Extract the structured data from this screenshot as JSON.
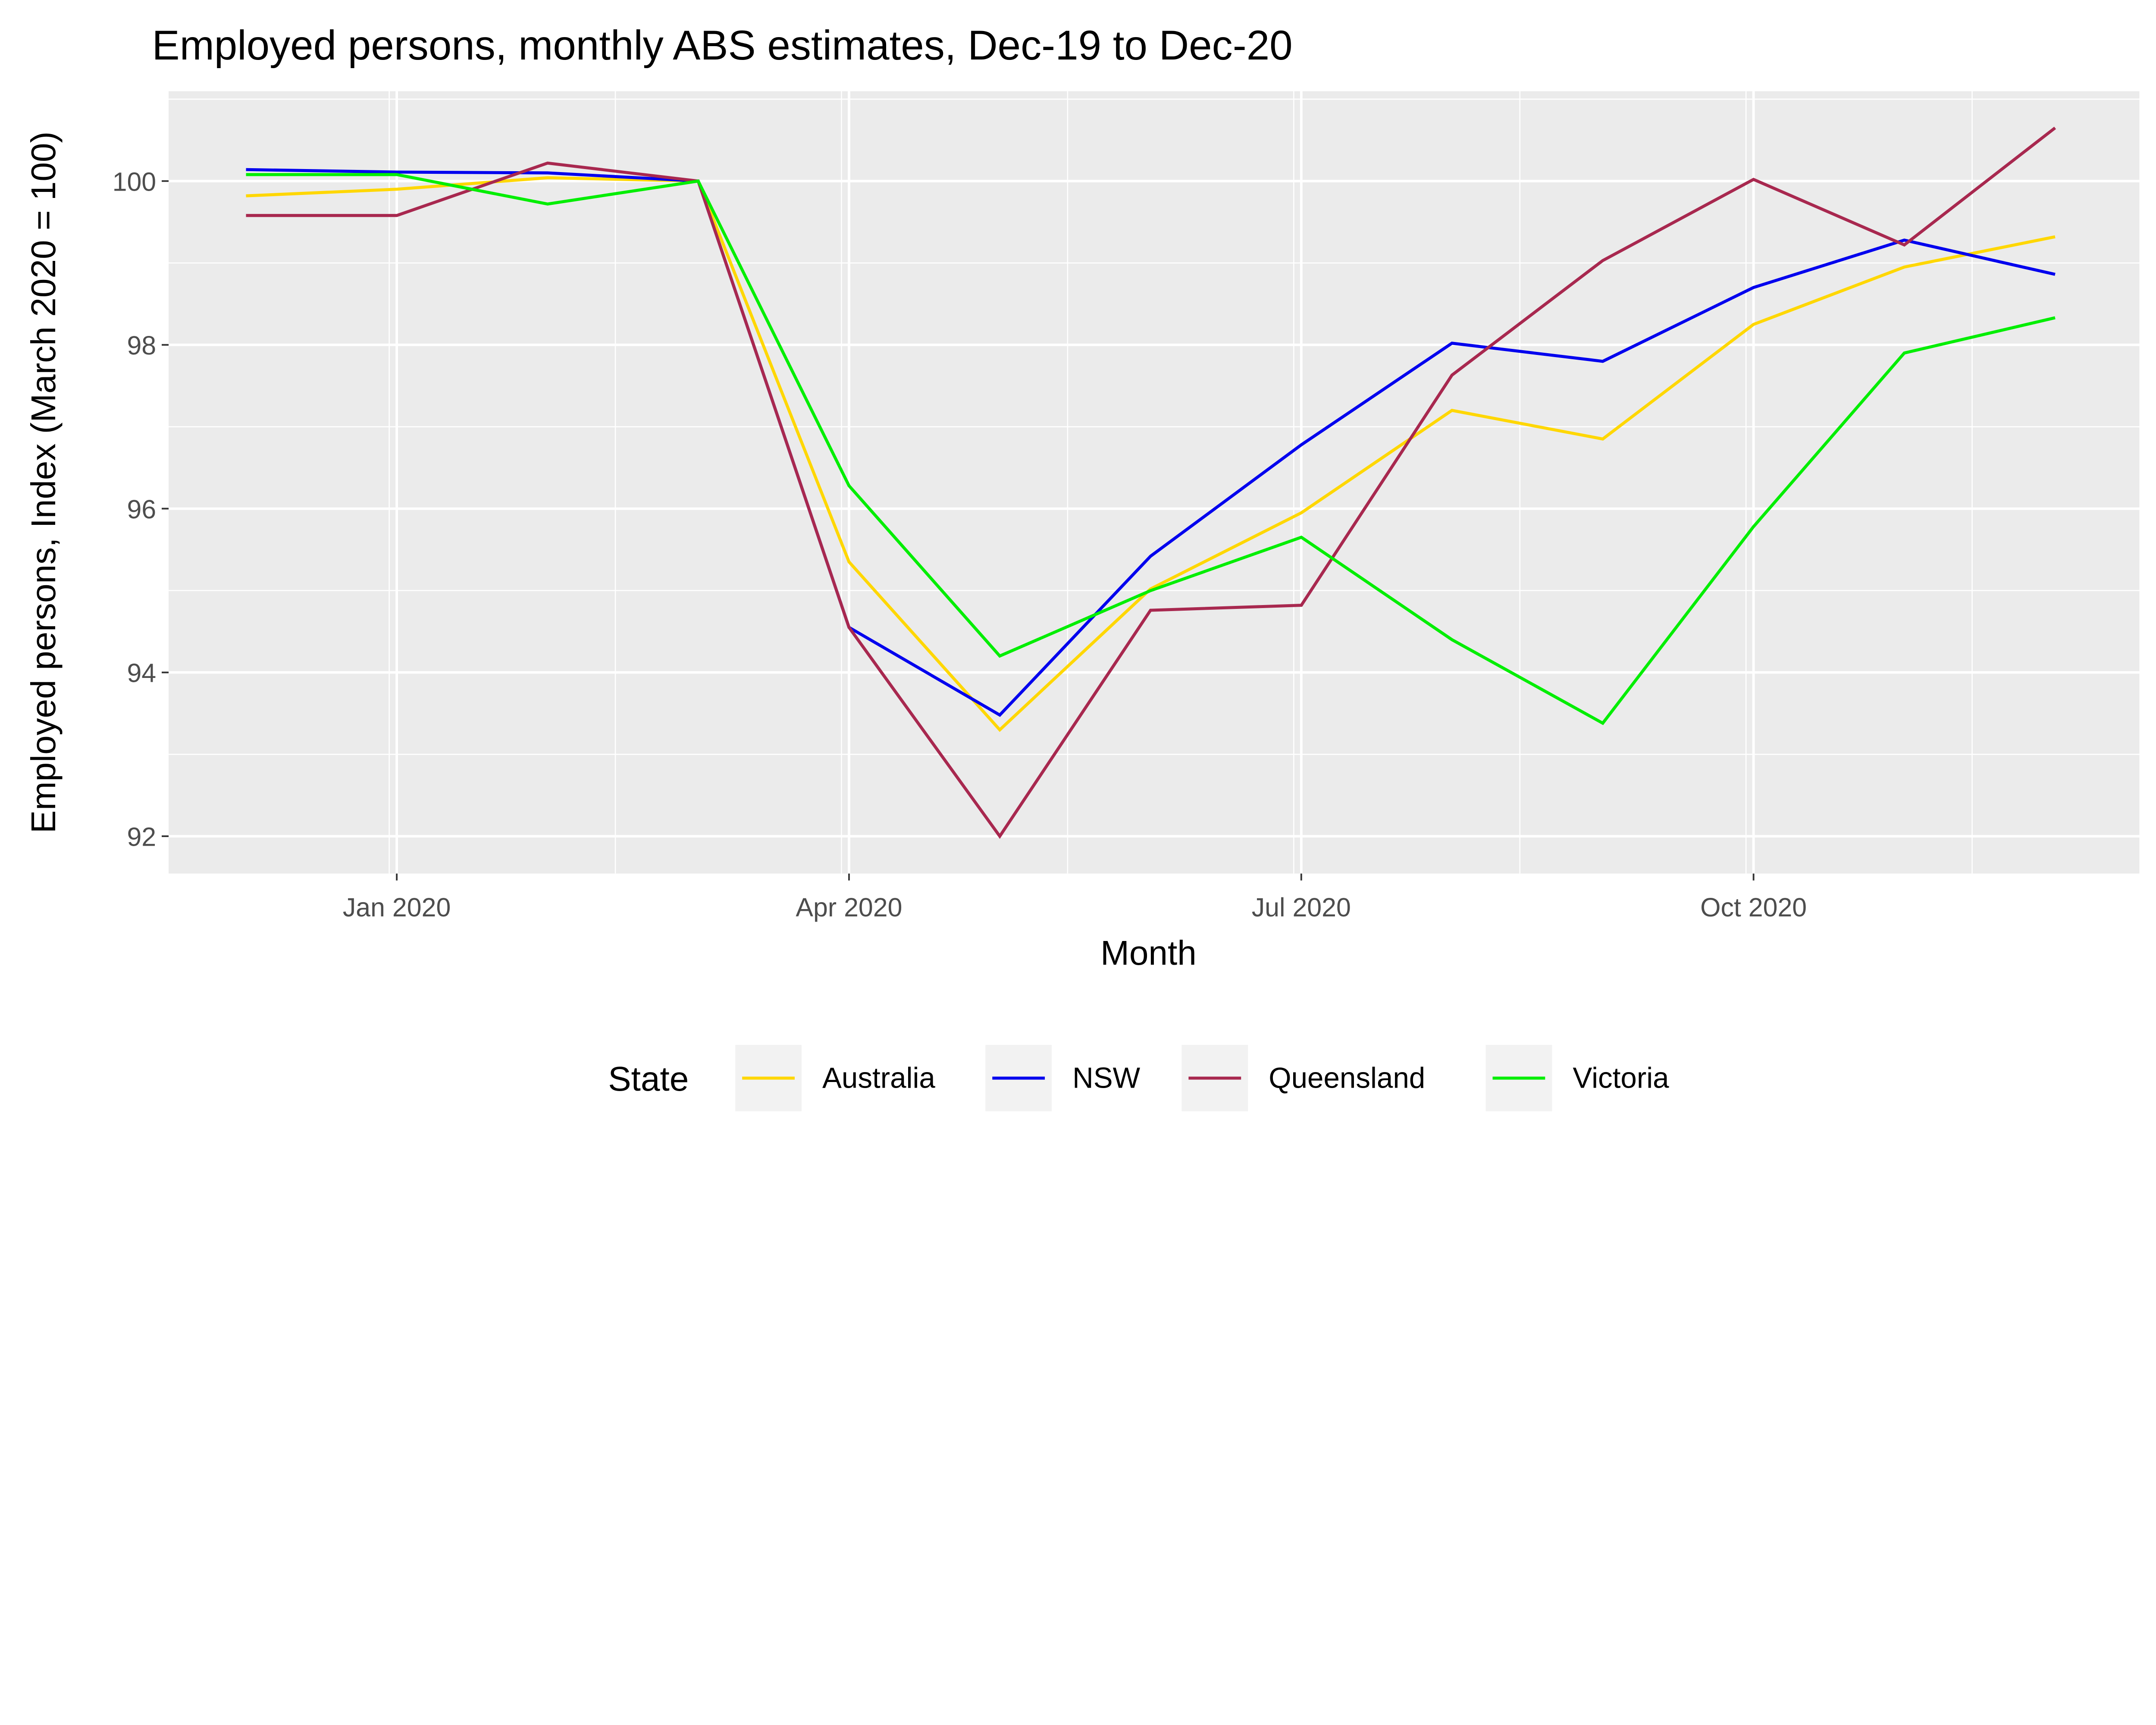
{
  "chart_data": {
    "type": "line",
    "title": "Employed persons, monthly ABS estimates, Dec-19 to Dec-20",
    "xlabel": "Month",
    "ylabel": "Employed persons, Index (March 2020 = 100)",
    "x": [
      "Dec 2019",
      "Jan 2020",
      "Feb 2020",
      "Mar 2020",
      "Apr 2020",
      "May 2020",
      "Jun 2020",
      "Jul 2020",
      "Aug 2020",
      "Sep 2020",
      "Oct 2020",
      "Nov 2020",
      "Dec 2020"
    ],
    "x_ticks": [
      {
        "index": 1,
        "label": "Jan 2020"
      },
      {
        "index": 4,
        "label": "Apr 2020"
      },
      {
        "index": 7,
        "label": "Jul 2020"
      },
      {
        "index": 10,
        "label": "Oct 2020"
      }
    ],
    "y_ticks": [
      92,
      94,
      96,
      98,
      100
    ],
    "ylim": [
      91.6,
      101.1
    ],
    "grid": true,
    "legend": {
      "title": "State",
      "position": "bottom"
    },
    "series": [
      {
        "name": "Australia",
        "color": "#FFD700",
        "values": [
          99.82,
          99.9,
          100.04,
          100,
          95.35,
          93.3,
          95.02,
          95.95,
          97.2,
          96.85,
          98.25,
          98.95,
          99.32
        ]
      },
      {
        "name": "NSW",
        "color": "#0000EE",
        "values": [
          100.14,
          100.11,
          100.1,
          100,
          94.55,
          93.48,
          95.42,
          96.78,
          98.02,
          97.8,
          98.7,
          99.28,
          98.86
        ]
      },
      {
        "name": "Queensland",
        "color": "#A8284F",
        "values": [
          99.58,
          99.58,
          100.22,
          100,
          94.55,
          92.0,
          94.76,
          94.82,
          97.63,
          99.03,
          100.02,
          99.22,
          100.65
        ]
      },
      {
        "name": "Victoria",
        "color": "#00EE00",
        "values": [
          100.08,
          100.08,
          99.72,
          100,
          96.28,
          94.2,
          95.0,
          95.65,
          94.4,
          93.38,
          95.78,
          97.9,
          98.33
        ]
      }
    ]
  }
}
